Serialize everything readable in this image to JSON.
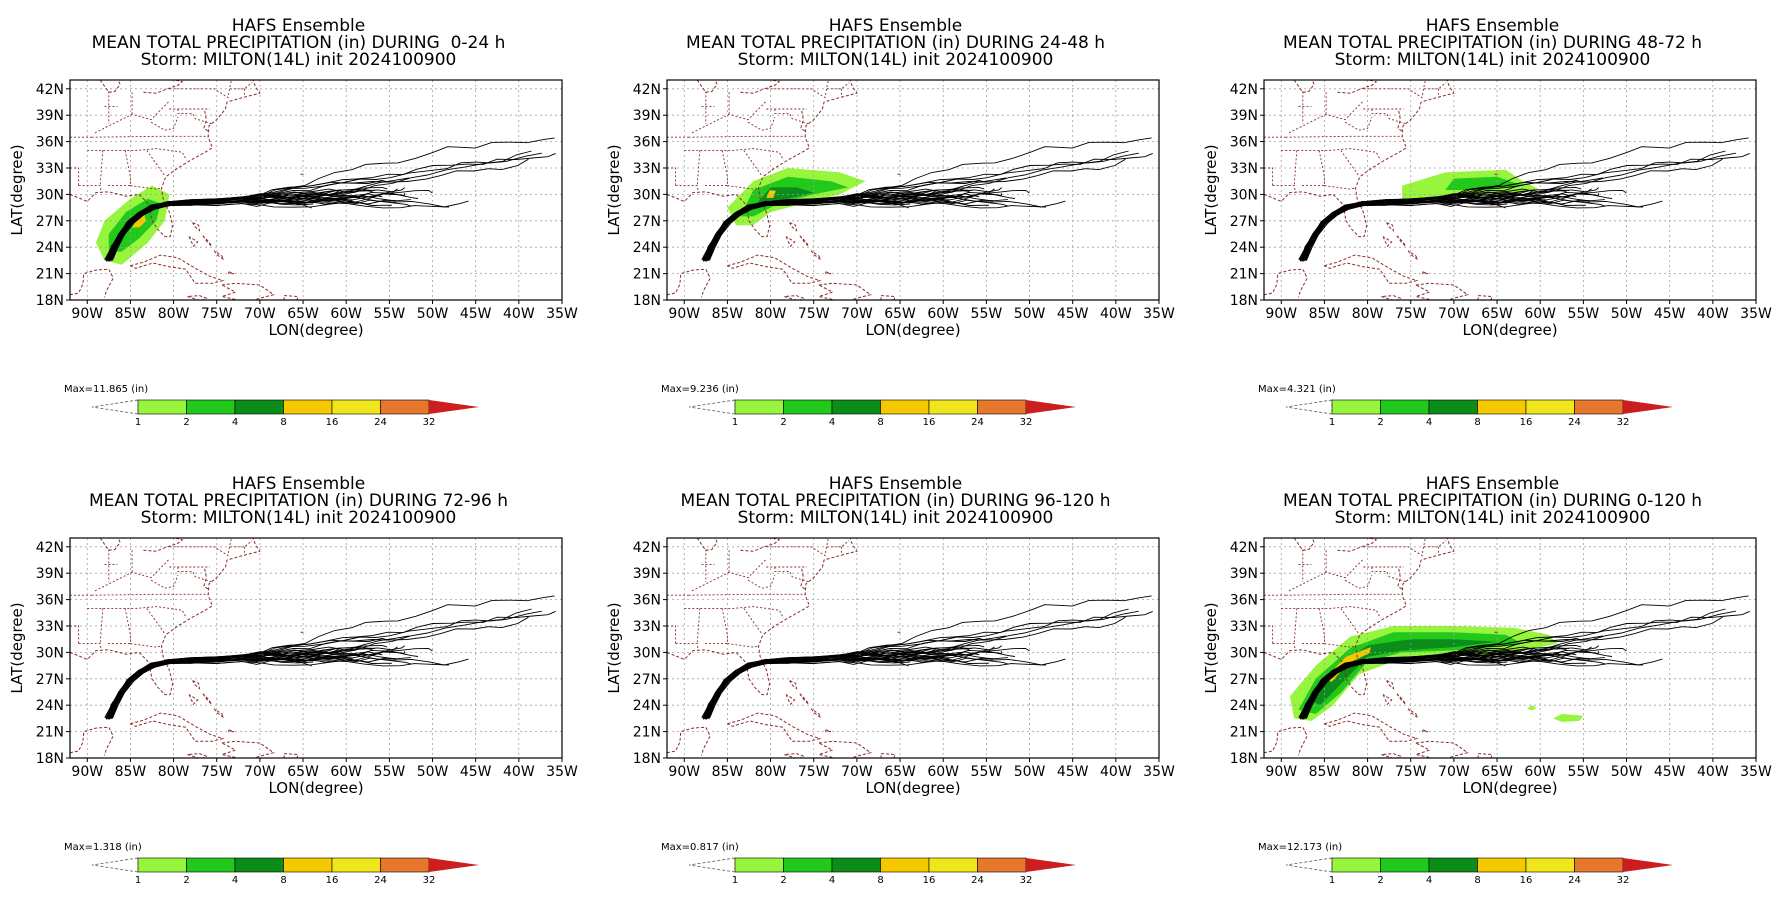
{
  "chart_data": [
    {
      "type": "map",
      "title": "HAFS Ensemble",
      "subtitle": "MEAN TOTAL PRECIPITATION (in) DURING  0-24 h",
      "storm": "Storm: MILTON(14L) init 2024100900",
      "xlabel": "LON(degree)",
      "ylabel": "LAT(degree)",
      "max_label": "Max=11.865  (in)",
      "xlim": [
        -92,
        -35
      ],
      "ylim": [
        18,
        43
      ],
      "precip_regions": [
        {
          "level": 1,
          "points": [
            [
              -88,
              22.5
            ],
            [
              -89,
              24.5
            ],
            [
              -88,
              27
            ],
            [
              -85,
              29.5
            ],
            [
              -82.5,
              31
            ],
            [
              -80.5,
              30
            ],
            [
              -81,
              27
            ],
            [
              -83,
              24.5
            ],
            [
              -86,
              22
            ]
          ]
        },
        {
          "level": 2,
          "points": [
            [
              -87.5,
              23.5
            ],
            [
              -87.5,
              25.5
            ],
            [
              -85.5,
              28
            ],
            [
              -83,
              29.5
            ],
            [
              -81.5,
              29
            ],
            [
              -82,
              27
            ],
            [
              -84,
              25
            ],
            [
              -86,
              23.5
            ]
          ]
        },
        {
          "level": 8,
          "points": [
            [
              -84.8,
              26.2
            ],
            [
              -84.2,
              27.3
            ],
            [
              -83.4,
              27.8
            ],
            [
              -83.2,
              27.0
            ],
            [
              -83.9,
              26.3
            ]
          ]
        }
      ]
    },
    {
      "type": "map",
      "title": "HAFS Ensemble",
      "subtitle": "MEAN TOTAL PRECIPITATION (in) DURING 24-48 h",
      "storm": "Storm: MILTON(14L) init 2024100900",
      "xlabel": "LON(degree)",
      "ylabel": "LAT(degree)",
      "max_label": "Max=9.236  (in)",
      "xlim": [
        -92,
        -35
      ],
      "ylim": [
        18,
        43
      ],
      "precip_regions": [
        {
          "level": 1,
          "points": [
            [
              -84,
              26.5
            ],
            [
              -85,
              28.5
            ],
            [
              -82,
              31.5
            ],
            [
              -78,
              33
            ],
            [
              -72,
              32.5
            ],
            [
              -69,
              31.5
            ],
            [
              -72,
              30
            ],
            [
              -76,
              29
            ],
            [
              -80,
              28
            ],
            [
              -82,
              26.5
            ]
          ]
        },
        {
          "level": 2,
          "points": [
            [
              -83.5,
              27.5
            ],
            [
              -82,
              30.5
            ],
            [
              -78,
              32
            ],
            [
              -73,
              31.5
            ],
            [
              -71,
              30.8
            ],
            [
              -75,
              30
            ],
            [
              -79,
              29
            ],
            [
              -82,
              27.5
            ]
          ]
        },
        {
          "level": 4,
          "points": [
            [
              -82,
              28.5
            ],
            [
              -80,
              30.8
            ],
            [
              -77,
              30.8
            ],
            [
              -75,
              30.2
            ],
            [
              -78,
              29.5
            ],
            [
              -80.5,
              28.7
            ]
          ]
        },
        {
          "level": 8,
          "points": [
            [
              -80.5,
              29.6
            ],
            [
              -80.1,
              30.5
            ],
            [
              -79.4,
              30.4
            ],
            [
              -79.7,
              29.6
            ]
          ]
        }
      ]
    },
    {
      "type": "map",
      "title": "HAFS Ensemble",
      "subtitle": "MEAN TOTAL PRECIPITATION (in) DURING 48-72 h",
      "storm": "Storm: MILTON(14L) init 2024100900",
      "xlabel": "LON(degree)",
      "ylabel": "LAT(degree)",
      "max_label": "Max=4.321  (in)",
      "xlim": [
        -92,
        -35
      ],
      "ylim": [
        18,
        43
      ],
      "precip_regions": [
        {
          "level": 1,
          "points": [
            [
              -76,
              29.5
            ],
            [
              -76,
              31
            ],
            [
              -71,
              32.5
            ],
            [
              -64,
              32.8
            ],
            [
              -62,
              31.5
            ],
            [
              -60,
              30.5
            ],
            [
              -66,
              30
            ],
            [
              -71,
              29.5
            ]
          ]
        },
        {
          "level": 2,
          "points": [
            [
              -71,
              30.5
            ],
            [
              -70,
              31.8
            ],
            [
              -65,
              32
            ],
            [
              -62,
              31
            ],
            [
              -66,
              30.5
            ]
          ]
        }
      ]
    },
    {
      "type": "map",
      "title": "HAFS Ensemble",
      "subtitle": "MEAN TOTAL PRECIPITATION (in) DURING 72-96 h",
      "storm": "Storm: MILTON(14L) init 2024100900",
      "xlabel": "LON(degree)",
      "ylabel": "LAT(degree)",
      "max_label": "Max=1.318  (in)",
      "xlim": [
        -92,
        -35
      ],
      "ylim": [
        18,
        43
      ],
      "precip_regions": []
    },
    {
      "type": "map",
      "title": "HAFS Ensemble",
      "subtitle": "MEAN TOTAL PRECIPITATION (in) DURING 96-120 h",
      "storm": "Storm: MILTON(14L) init 2024100900",
      "xlabel": "LON(degree)",
      "ylabel": "LAT(degree)",
      "max_label": "Max=0.817  (in)",
      "xlim": [
        -92,
        -35
      ],
      "ylim": [
        18,
        43
      ],
      "precip_regions": []
    },
    {
      "type": "map",
      "title": "HAFS Ensemble",
      "subtitle": "MEAN TOTAL PRECIPITATION (in) DURING 0-120 h",
      "storm": "Storm: MILTON(14L) init 2024100900",
      "xlabel": "LON(degree)",
      "ylabel": "LAT(degree)",
      "max_label": "Max=12.173  (in)",
      "xlim": [
        -92,
        -35
      ],
      "ylim": [
        18,
        43
      ],
      "precip_regions": [
        {
          "level": 1,
          "points": [
            [
              -88.5,
              22.5
            ],
            [
              -89,
              25
            ],
            [
              -86,
              28.5
            ],
            [
              -82,
              31.8
            ],
            [
              -77,
              33
            ],
            [
              -70,
              33
            ],
            [
              -63,
              32.8
            ],
            [
              -59,
              32
            ],
            [
              -58,
              31
            ],
            [
              -63,
              30
            ],
            [
              -70,
              29.5
            ],
            [
              -77,
              29
            ],
            [
              -81,
              27.5
            ],
            [
              -84,
              24
            ],
            [
              -86.5,
              22.2
            ]
          ]
        },
        {
          "level": 2,
          "points": [
            [
              -88,
              23.5
            ],
            [
              -86,
              27
            ],
            [
              -82,
              30.5
            ],
            [
              -77,
              32.3
            ],
            [
              -70,
              32.3
            ],
            [
              -64,
              32
            ],
            [
              -62,
              31
            ],
            [
              -68,
              30.3
            ],
            [
              -76,
              30
            ],
            [
              -80,
              29
            ],
            [
              -83,
              25.5
            ],
            [
              -86,
              23
            ]
          ]
        },
        {
          "level": 4,
          "points": [
            [
              -86.5,
              24.5
            ],
            [
              -84,
              28
            ],
            [
              -80,
              30.8
            ],
            [
              -75,
              31.5
            ],
            [
              -70,
              31.5
            ],
            [
              -65,
              31.2
            ],
            [
              -70,
              30.6
            ],
            [
              -76,
              30.2
            ],
            [
              -80,
              29.5
            ],
            [
              -83,
              26.5
            ],
            [
              -85.5,
              24
            ]
          ]
        },
        {
          "level": 8,
          "points": [
            [
              -84.8,
              27.2
            ],
            [
              -82.5,
              29.5
            ],
            [
              -79.6,
              30.6
            ],
            [
              -79.8,
              29.9
            ],
            [
              -82.2,
              28.8
            ],
            [
              -84.2,
              26.6
            ]
          ]
        },
        {
          "level": 1,
          "points": [
            [
              -58.5,
              22.5
            ],
            [
              -57.5,
              23
            ],
            [
              -55,
              22.8
            ],
            [
              -55.5,
              22.2
            ],
            [
              -57.5,
              22.1
            ]
          ]
        },
        {
          "level": 1,
          "points": [
            [
              -61.5,
              23.6
            ],
            [
              -61,
              24
            ],
            [
              -60.4,
              23.7
            ],
            [
              -61,
              23.4
            ]
          ]
        }
      ]
    }
  ],
  "colorbar": {
    "labels": [
      "1",
      "2",
      "4",
      "8",
      "16",
      "24",
      "32"
    ],
    "unit": "(in)",
    "colors": [
      "#ffffff",
      "#96f53c",
      "#22c81c",
      "#0c8c18",
      "#f5c800",
      "#f0e61c",
      "#e6782e",
      "#cc1e1e"
    ]
  },
  "colors": {
    "map_outline": "#8b2a2a",
    "track": "#000000",
    "grid": "#a0a0a0"
  },
  "lon_ticks": [
    "90W",
    "85W",
    "80W",
    "75W",
    "70W",
    "65W",
    "60W",
    "55W",
    "50W",
    "45W",
    "40W",
    "35W"
  ],
  "lat_ticks": [
    "18N",
    "21N",
    "24N",
    "27N",
    "30N",
    "33N",
    "36N",
    "39N",
    "42N"
  ]
}
